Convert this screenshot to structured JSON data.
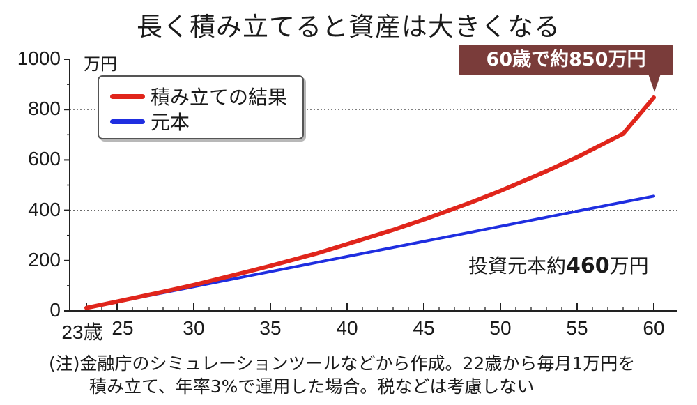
{
  "title": "長く積み立てると資産は大きくなる",
  "unit_label": "万円",
  "callout": "60歳で約850万円",
  "principal_note": {
    "prefix": "投資元本約",
    "value": "460",
    "suffix": "万円"
  },
  "note": {
    "line1": "(注)金融庁のシミュレーションツールなどから作成。22歳から毎月1万円を",
    "line2": "積み立て、年率3%で運用した場合。税などは考慮しない"
  },
  "colors": {
    "result": "#e0251b",
    "principal": "#1f2ee0",
    "callout_bg": "#7a3c3a"
  },
  "chart_data": {
    "type": "line",
    "title": "長く積み立てると資産は大きくなる",
    "ylabel": "万円",
    "xlabel": "",
    "xlim": [
      23,
      60
    ],
    "ylim": [
      0,
      1000
    ],
    "y_ticks": [
      "0",
      "200",
      "400",
      "600",
      "800",
      "1000"
    ],
    "x_tick_labels": [
      "23歳",
      "25",
      "30",
      "35",
      "40",
      "45",
      "50",
      "55",
      "60"
    ],
    "gridlines_at": [
      400,
      800
    ],
    "legend_position": "top-left",
    "series": [
      {
        "name": "積み立ての結果",
        "color": "#e0251b",
        "x": [
          23,
          25,
          28,
          30,
          33,
          35,
          38,
          40,
          43,
          45,
          48,
          50,
          53,
          55,
          58,
          60
        ],
        "y": [
          12,
          37,
          76,
          103,
          148,
          179,
          228,
          265,
          322,
          363,
          429,
          477,
          555,
          611,
          704,
          848
        ]
      },
      {
        "name": "元本",
        "color": "#1f2ee0",
        "x": [
          23,
          25,
          28,
          30,
          33,
          35,
          38,
          40,
          43,
          45,
          48,
          50,
          53,
          55,
          58,
          60
        ],
        "y": [
          12,
          36,
          72,
          96,
          132,
          156,
          192,
          216,
          252,
          276,
          312,
          336,
          372,
          396,
          432,
          456
        ]
      }
    ]
  }
}
